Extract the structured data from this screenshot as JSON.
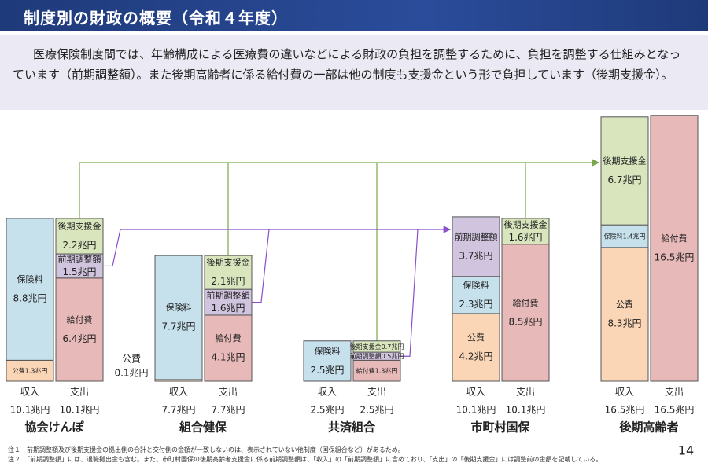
{
  "header": {
    "title": "制度別の財政の概要（令和４年度）"
  },
  "description": "医療保険制度間では、年齢構成による医療費の違いなどによる財政の負担を調整するために、負担を調整する仕組みとなっています（前期調整額）。また後期高齢者に係る給付費の一部は他の制度も支援金という形で負担しています（後期支援金）。",
  "chart_data": {
    "type": "stacked-column-groups",
    "unit_scale": "兆円",
    "colors": {
      "保険料": "#c6e0ec",
      "公費": "#fbd6b6",
      "給付費": "#e7b9b8",
      "前期調整額": "#d0c4de",
      "後期支援金": "#d8e5bd"
    },
    "groups": [
      {
        "name": "協会けんぽ",
        "income": {
          "label": "収入",
          "total": "10.1兆円",
          "segments": [
            {
              "name": "公費",
              "value": 1.3,
              "value_label": "1.3兆円"
            },
            {
              "name": "保険料",
              "value": 8.8,
              "value_label": "8.8兆円"
            }
          ]
        },
        "expense": {
          "label": "支出",
          "total": "10.1兆円",
          "segments": [
            {
              "name": "給付費",
              "value": 6.4,
              "value_label": "6.4兆円"
            },
            {
              "name": "前期調整額",
              "value": 1.5,
              "value_label": "1.5兆円"
            },
            {
              "name": "後期支援金",
              "value": 2.2,
              "value_label": "2.2兆円"
            }
          ]
        }
      },
      {
        "name": "組合健保",
        "income": {
          "label": "収入",
          "total": "7.7兆円",
          "segments": [
            {
              "name": "公費",
              "value": 0.1,
              "value_label": "0.1兆円"
            },
            {
              "name": "保険料",
              "value": 7.7,
              "value_label": "7.7兆円"
            }
          ]
        },
        "expense": {
          "label": "支出",
          "total": "7.7兆円",
          "segments": [
            {
              "name": "給付費",
              "value": 4.1,
              "value_label": "4.1兆円"
            },
            {
              "name": "前期調整額",
              "value": 1.6,
              "value_label": "1.6兆円"
            },
            {
              "name": "後期支援金",
              "value": 2.1,
              "value_label": "2.1兆円"
            }
          ]
        }
      },
      {
        "name": "共済組合",
        "income": {
          "label": "収入",
          "total": "2.5兆円",
          "segments": [
            {
              "name": "保険料",
              "value": 2.5,
              "value_label": "2.5兆円"
            }
          ]
        },
        "expense": {
          "label": "支出",
          "total": "2.5兆円",
          "segments": [
            {
              "name": "給付費",
              "value": 1.3,
              "value_label": "1.3兆円"
            },
            {
              "name": "前期調整額",
              "value": 0.5,
              "value_label": "0.5兆円"
            },
            {
              "name": "後期支援金",
              "value": 0.7,
              "value_label": "0.7兆円"
            }
          ]
        }
      },
      {
        "name": "市町村国保",
        "income": {
          "label": "収入",
          "total": "10.1兆円",
          "segments": [
            {
              "name": "公費",
              "value": 4.2,
              "value_label": "4.2兆円"
            },
            {
              "name": "保険料",
              "value": 2.3,
              "value_label": "2.3兆円"
            },
            {
              "name": "前期調整額",
              "value": 3.7,
              "value_label": "3.7兆円"
            }
          ]
        },
        "expense": {
          "label": "支出",
          "total": "10.1兆円",
          "segments": [
            {
              "name": "給付費",
              "value": 8.5,
              "value_label": "8.5兆円"
            },
            {
              "name": "後期支援金",
              "value": 1.6,
              "value_label": "1.6兆円"
            }
          ]
        }
      },
      {
        "name": "後期高齢者",
        "income": {
          "label": "収入",
          "total": "16.5兆円",
          "segments": [
            {
              "name": "公費",
              "value": 8.3,
              "value_label": "8.3兆円"
            },
            {
              "name": "保険料",
              "value": 1.4,
              "value_label": "1.4兆円"
            },
            {
              "name": "後期支援金",
              "value": 6.7,
              "value_label": "6.7兆円"
            }
          ]
        },
        "expense": {
          "label": "支出",
          "total": "16.5兆円",
          "segments": [
            {
              "name": "給付費",
              "value": 16.5,
              "value_label": "16.5兆円"
            }
          ]
        }
      }
    ]
  },
  "notes": [
    "注１　前期調整額及び後期支援金の拠出側の合計と交付側の金額が一致しないのは、表示されていない他制度（国保組合など）があるため。",
    "注２　「前期調整額」には、退職拠出金も含む。また、市町村国保の後期高齢者支援金に係る前期調整額は、「収入」の「前期調整額」に含めており、「支出」の「後期支援金」には調整前の金額を記載している。"
  ],
  "page_number": "14"
}
